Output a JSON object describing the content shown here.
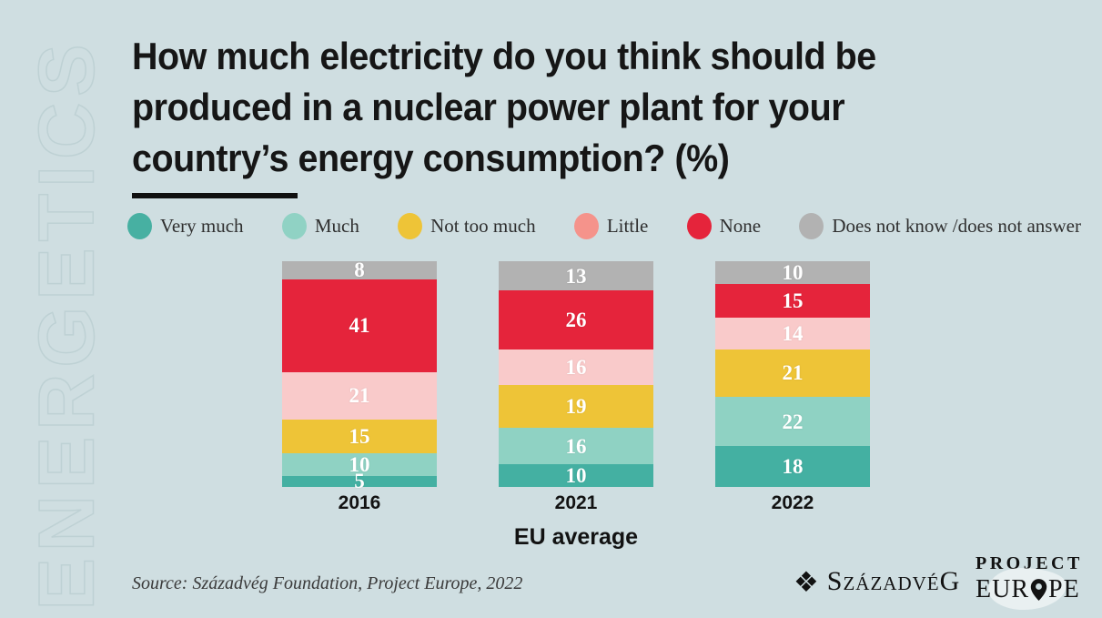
{
  "watermark": "ENERGETICS",
  "title": {
    "lines": [
      "How much electricity do you think should be",
      "produced in a nuclear power plant for your",
      "country’s energy consumption? (%)"
    ]
  },
  "legend": [
    {
      "label": "Very much",
      "color": "#47b0a2"
    },
    {
      "label": "Much",
      "color": "#90d2c4"
    },
    {
      "label": "Not too much",
      "color": "#eec437"
    },
    {
      "label": "Little",
      "color": "#f5938b"
    },
    {
      "label": "None",
      "color": "#e5243b"
    },
    {
      "label": "Does not know /does not answer",
      "color": "#b2b2b2"
    }
  ],
  "chart_data": {
    "type": "bar",
    "stacked": true,
    "title": "How much electricity do you think should be produced in a nuclear power plant for your country’s energy consumption? (%)",
    "categories": [
      "2016",
      "2021",
      "2022"
    ],
    "series": [
      {
        "name": "Very much",
        "color": "#44b0a2",
        "values": [
          5,
          10,
          18
        ]
      },
      {
        "name": "Much",
        "color": "#8fd2c3",
        "values": [
          10,
          16,
          22
        ]
      },
      {
        "name": "Not too much",
        "color": "#eec437",
        "values": [
          15,
          19,
          21
        ]
      },
      {
        "name": "Little",
        "color": "#f9caca",
        "values": [
          21,
          16,
          14
        ]
      },
      {
        "name": "None",
        "color": "#e5243b",
        "values": [
          41,
          26,
          15
        ]
      },
      {
        "name": "Does not know /does not answer",
        "color": "#b2b2b2",
        "values": [
          8,
          13,
          10
        ]
      }
    ],
    "segment_order_top_to_bottom": [
      "Does not know /does not answer",
      "None",
      "Little",
      "Not too much",
      "Much",
      "Very much"
    ],
    "xlabel": "EU average",
    "value_unit": "%",
    "ylim": [
      0,
      100
    ],
    "legend_position": "top",
    "grid": false
  },
  "x_axis_label": "EU average",
  "source": "Source: Századvég Foundation, Project Europe, 2022",
  "logos": {
    "szazadveg": {
      "first": "S",
      "middle": "ZÁZADVÉ",
      "last": "G",
      "icon": "diamond-icon"
    },
    "project_europe": {
      "line1": "PROJECT",
      "line2_left": "EUR",
      "line2_right": "PE",
      "icon": "map-pin-icon"
    }
  }
}
